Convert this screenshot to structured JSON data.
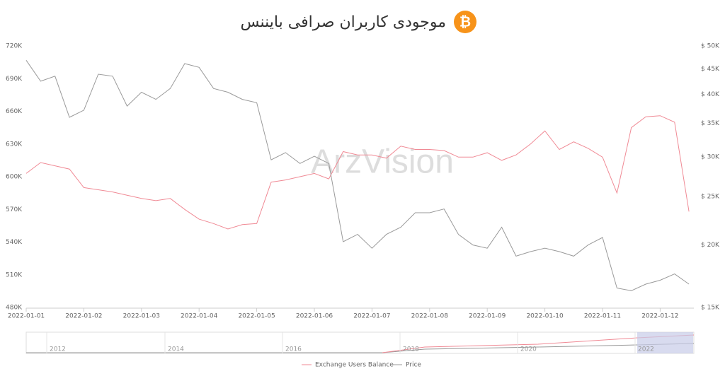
{
  "title": "موجودی کاربران صرافی بایننس",
  "watermark": "ArzVision",
  "chart_data": {
    "type": "line",
    "categories": [
      "2022-01-01",
      null,
      null,
      null,
      "2022-01-02",
      null,
      null,
      null,
      "2022-01-03",
      null,
      null,
      null,
      "2022-01-04",
      null,
      null,
      null,
      "2022-01-05",
      null,
      null,
      null,
      "2022-01-06",
      null,
      null,
      null,
      "2022-01-07",
      null,
      null,
      null,
      "2022-01-08",
      null,
      null,
      null,
      "2022-01-09",
      null,
      null,
      null,
      "2022-01-10",
      null,
      null,
      null,
      "2022-01-11",
      null,
      null,
      null,
      "2022-01-12",
      null,
      null
    ],
    "series": [
      {
        "name": "Exchange Users Balance",
        "color": "#f08a95",
        "values": [
          603000,
          613000,
          610000,
          607000,
          590000,
          588000,
          586000,
          583000,
          580000,
          578000,
          580000,
          570000,
          561000,
          557000,
          552000,
          556000,
          557000,
          595000,
          597000,
          600000,
          603000,
          598000,
          623000,
          620000,
          620000,
          617000,
          628000,
          625000,
          625000,
          624000,
          618000,
          618000,
          622000,
          615000,
          620000,
          630000,
          642000,
          625000,
          632000,
          626000,
          618000,
          585000,
          645000,
          655000,
          656000,
          650000,
          568000
        ]
      },
      {
        "name": "Price",
        "color": "#9a9a9a",
        "axis": "y2",
        "values": [
          46800,
          42500,
          43500,
          36000,
          37200,
          43900,
          43500,
          37900,
          40400,
          39100,
          41100,
          46100,
          45300,
          41100,
          40400,
          39100,
          38500,
          29600,
          30600,
          29100,
          30100,
          29100,
          20300,
          21000,
          19700,
          21000,
          21700,
          23200,
          23200,
          23600,
          21000,
          20000,
          19700,
          21700,
          19000,
          19400,
          19700,
          19400,
          19000,
          20000,
          20700,
          16400,
          16200,
          16700,
          17000,
          17500,
          16700
        ]
      }
    ],
    "ylim": [
      480000,
      720000
    ],
    "yticks": [
      {
        "value": 480000,
        "label": "480K"
      },
      {
        "value": 510000,
        "label": "510K"
      },
      {
        "value": 540000,
        "label": "540K"
      },
      {
        "value": 570000,
        "label": "570K"
      },
      {
        "value": 600000,
        "label": "600K"
      },
      {
        "value": 630000,
        "label": "630K"
      },
      {
        "value": 660000,
        "label": "660K"
      },
      {
        "value": 690000,
        "label": "690K"
      },
      {
        "value": 720000,
        "label": "720K"
      }
    ],
    "y2lim": [
      15000,
      50000
    ],
    "y2log": true,
    "y2ticks": [
      {
        "value": 15000,
        "label": "$ 15K"
      },
      {
        "value": 20000,
        "label": "$ 20K"
      },
      {
        "value": 25000,
        "label": "$ 25K"
      },
      {
        "value": 30000,
        "label": "$ 30K"
      },
      {
        "value": 35000,
        "label": "$ 35K"
      },
      {
        "value": 40000,
        "label": "$ 40K"
      },
      {
        "value": 45000,
        "label": "$ 45K"
      },
      {
        "value": 50000,
        "label": "$ 50K"
      }
    ],
    "grid": false
  },
  "navigator": {
    "labels": [
      "2012",
      "2014",
      "2016",
      "2018",
      "2020",
      "2022"
    ]
  }
}
